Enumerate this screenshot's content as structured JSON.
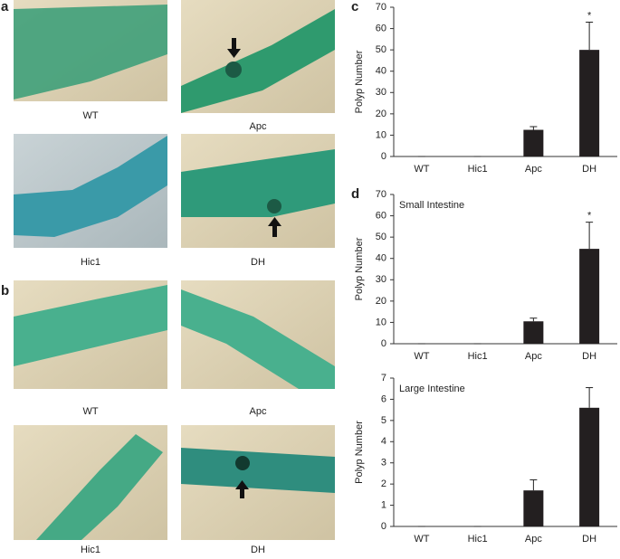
{
  "figure": {
    "panel_labels": [
      "a",
      "b",
      "c",
      "d"
    ],
    "captions": [
      "WT",
      "Apc",
      "Hic1",
      "DH",
      "WT",
      "Apc",
      "Hic1",
      "DH"
    ]
  },
  "chart_data": [
    {
      "type": "bar",
      "ylabel": "Polyp Number",
      "categories": [
        "WT",
        "Hic1",
        "Apc",
        "DH"
      ],
      "values": [
        0,
        0,
        12.5,
        50
      ],
      "errors": [
        0,
        0,
        1.5,
        13
      ],
      "color": "#231f20",
      "ylim": [
        0,
        70
      ],
      "yticks": [
        0,
        10,
        20,
        30,
        40,
        50,
        60,
        70
      ],
      "annotation": {
        "text": "*",
        "category": "DH"
      }
    },
    {
      "type": "bar",
      "title": "Small Intestine",
      "ylabel": "Polyp Number",
      "categories": [
        "WT",
        "Hic1",
        "Apc",
        "DH"
      ],
      "values": [
        0,
        0,
        10.5,
        44.5
      ],
      "errors": [
        0,
        0,
        1.5,
        12.5
      ],
      "color": "#231f20",
      "ylim": [
        0,
        70
      ],
      "yticks": [
        0,
        10,
        20,
        30,
        40,
        50,
        60,
        70
      ],
      "annotation": {
        "text": "*",
        "category": "DH"
      }
    },
    {
      "type": "bar",
      "title": "Large Intestine",
      "ylabel": "Polyp Number",
      "categories": [
        "WT",
        "Hic1",
        "Apc",
        "DH"
      ],
      "values": [
        0,
        0,
        1.7,
        5.6
      ],
      "errors": [
        0,
        0,
        0.5,
        0.95
      ],
      "color": "#231f20",
      "ylim": [
        0,
        7
      ],
      "yticks": [
        0,
        1,
        2,
        3,
        4,
        5,
        6,
        7
      ]
    }
  ]
}
